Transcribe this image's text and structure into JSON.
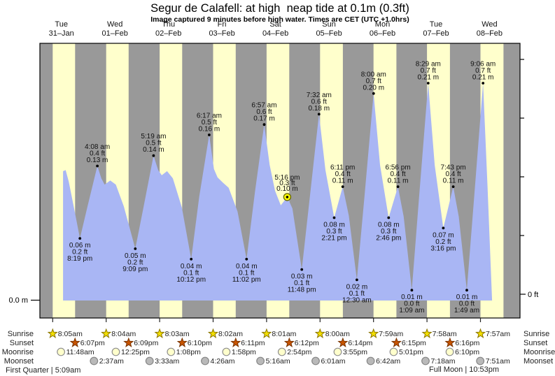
{
  "title": "Segur de Calafell: at high  neap tide at 0.1m (0.3ft)",
  "subtitle": "Image captured 9 minutes before high water. Times are CET (UTC +1.0hrs)",
  "axes": {
    "left_label": "0.0 m",
    "right_label": "0 ft"
  },
  "days": [
    {
      "weekday": "Tue",
      "date": "31–Jan"
    },
    {
      "weekday": "Wed",
      "date": "01–Feb"
    },
    {
      "weekday": "Thu",
      "date": "02–Feb"
    },
    {
      "weekday": "Fri",
      "date": "03–Feb"
    },
    {
      "weekday": "Sat",
      "date": "04–Feb"
    },
    {
      "weekday": "Sun",
      "date": "05–Feb"
    },
    {
      "weekday": "Mon",
      "date": "06–Feb"
    },
    {
      "weekday": "Tue",
      "date": "07–Feb"
    },
    {
      "weekday": "Wed",
      "date": "08–Feb"
    }
  ],
  "colors": {
    "night_band": "#999999",
    "day_band": "#ffffcc",
    "tide_fill": "#a9b6f4",
    "date_red": "#fb4444",
    "annotation": "#111111",
    "sunrise_star": "#f2de00",
    "sunrise_star_stroke": "#8a7500",
    "sunset_star": "#c75400",
    "sunset_star_stroke": "#7a3300",
    "moonrise_circle": "#ffffcc",
    "moonrise_stroke": "#8e8e8e",
    "moonset_circle": "#b9b9b9",
    "moonset_stroke": "#858585",
    "current_marker": "#ffff00",
    "current_marker_ring": "#6b6b00"
  },
  "chart_data": {
    "type": "area",
    "title": "Segur de Calafell: at high  neap tide at 0.1m (0.3ft)",
    "ylabel_left": "0.0 m",
    "ylabel_right": "0 ft",
    "ylim_m": [
      0,
      0.25
    ],
    "x_unit": "hours from 00:00 Tue 31-Jan",
    "events": [
      {
        "kind": "low",
        "t": 20.32,
        "m": 0.06,
        "lines": [
          "0.06 m",
          "0.2 ft",
          "8:19 pm"
        ]
      },
      {
        "kind": "high",
        "t": 28.13,
        "m": 0.13,
        "lines": [
          "4:08 am",
          "0.4 ft",
          "0.13 m"
        ]
      },
      {
        "kind": "low",
        "t": 45.15,
        "m": 0.05,
        "lines": [
          "0.05 m",
          "0.2 ft",
          "9:09 pm"
        ]
      },
      {
        "kind": "high",
        "t": 53.32,
        "m": 0.14,
        "lines": [
          "5:19 am",
          "0.5 ft",
          "0.14 m"
        ]
      },
      {
        "kind": "low",
        "t": 70.2,
        "m": 0.04,
        "lines": [
          "0.04 m",
          "0.1 ft",
          "10:12 pm"
        ]
      },
      {
        "kind": "high",
        "t": 78.28,
        "m": 0.16,
        "lines": [
          "6:17 am",
          "0.5 ft",
          "0.16 m"
        ]
      },
      {
        "kind": "low",
        "t": 95.03,
        "m": 0.04,
        "lines": [
          "0.04 m",
          "0.1 ft",
          "11:02 pm"
        ]
      },
      {
        "kind": "high",
        "t": 102.95,
        "m": 0.17,
        "lines": [
          "6:57 am",
          "0.6 ft",
          "0.17 m"
        ]
      },
      {
        "kind": "current",
        "t": 113.27,
        "m": 0.1,
        "lines": [
          "5:16 pm",
          "0.3 ft",
          "0.10 m"
        ]
      },
      {
        "kind": "low",
        "t": 119.8,
        "m": 0.03,
        "lines": [
          "0.03 m",
          "0.1 ft",
          "11:48 pm"
        ]
      },
      {
        "kind": "high",
        "t": 127.53,
        "m": 0.18,
        "lines": [
          "7:32 am",
          "0.6 ft",
          "0.18 m"
        ]
      },
      {
        "kind": "low",
        "t": 134.35,
        "m": 0.08,
        "lines": [
          "0.08 m",
          "0.3 ft",
          "2:21 pm"
        ]
      },
      {
        "kind": "high",
        "t": 138.18,
        "m": 0.11,
        "lines": [
          "6:11 pm",
          "0.4 ft",
          "0.11 m"
        ]
      },
      {
        "kind": "low",
        "t": 144.5,
        "m": 0.02,
        "lines": [
          "0.02 m",
          "0.1 ft",
          "12:30 am"
        ]
      },
      {
        "kind": "high",
        "t": 152.0,
        "m": 0.2,
        "lines": [
          "8:00 am",
          "0.7 ft",
          "0.20 m"
        ]
      },
      {
        "kind": "low",
        "t": 158.77,
        "m": 0.08,
        "lines": [
          "0.08 m",
          "0.3 ft",
          "2:46 pm"
        ]
      },
      {
        "kind": "high",
        "t": 162.93,
        "m": 0.11,
        "lines": [
          "6:56 pm",
          "0.4 ft",
          "0.11 m"
        ]
      },
      {
        "kind": "low",
        "t": 169.15,
        "m": 0.01,
        "lines": [
          "0.01 m",
          "0.0 ft",
          "1:09 am"
        ]
      },
      {
        "kind": "high",
        "t": 176.48,
        "m": 0.21,
        "lines": [
          "8:29 am",
          "0.7 ft",
          "0.21 m"
        ]
      },
      {
        "kind": "low",
        "t": 183.27,
        "m": 0.07,
        "lines": [
          "0.07 m",
          "0.2 ft",
          "3:16 pm"
        ]
      },
      {
        "kind": "high",
        "t": 187.72,
        "m": 0.11,
        "lines": [
          "7:43 pm",
          "0.4 ft",
          "0.11 m"
        ]
      },
      {
        "kind": "low",
        "t": 193.82,
        "m": 0.01,
        "lines": [
          "0.01 m",
          "0.0 ft",
          "1:49 am"
        ]
      },
      {
        "kind": "high",
        "t": 201.1,
        "m": 0.21,
        "lines": [
          "9:06 am",
          "0.7 ft",
          "0.21 m"
        ]
      }
    ],
    "curve_points": [
      [
        12.75,
        0.125
      ],
      [
        13.9,
        0.126
      ],
      [
        15.3,
        0.115
      ],
      [
        17.6,
        0.09
      ],
      [
        20.32,
        0.06
      ],
      [
        23.6,
        0.09
      ],
      [
        28.13,
        0.13
      ],
      [
        29.9,
        0.118
      ],
      [
        31.4,
        0.112
      ],
      [
        33.9,
        0.116
      ],
      [
        36.4,
        0.112
      ],
      [
        40.0,
        0.091
      ],
      [
        45.15,
        0.05
      ],
      [
        48.8,
        0.09
      ],
      [
        53.32,
        0.14
      ],
      [
        55.4,
        0.126
      ],
      [
        57.0,
        0.121
      ],
      [
        59.4,
        0.125
      ],
      [
        62.0,
        0.118
      ],
      [
        66.0,
        0.09
      ],
      [
        70.2,
        0.04
      ],
      [
        73.8,
        0.1
      ],
      [
        78.28,
        0.16
      ],
      [
        80.4,
        0.127
      ],
      [
        82.0,
        0.119
      ],
      [
        84.4,
        0.114
      ],
      [
        87.0,
        0.109
      ],
      [
        91.0,
        0.086
      ],
      [
        95.03,
        0.04
      ],
      [
        98.8,
        0.105
      ],
      [
        102.95,
        0.17
      ],
      [
        105.4,
        0.131
      ],
      [
        107.8,
        0.106
      ],
      [
        110.4,
        0.092
      ],
      [
        113.27,
        0.1
      ],
      [
        115.6,
        0.089
      ],
      [
        119.8,
        0.03
      ],
      [
        123.4,
        0.1
      ],
      [
        127.53,
        0.18
      ],
      [
        130.4,
        0.126
      ],
      [
        134.35,
        0.08
      ],
      [
        138.18,
        0.11
      ],
      [
        140.9,
        0.082
      ],
      [
        144.5,
        0.02
      ],
      [
        147.9,
        0.1
      ],
      [
        152.0,
        0.2
      ],
      [
        154.9,
        0.131
      ],
      [
        158.77,
        0.08
      ],
      [
        162.93,
        0.11
      ],
      [
        165.5,
        0.081
      ],
      [
        169.15,
        0.01
      ],
      [
        172.4,
        0.1
      ],
      [
        176.48,
        0.21
      ],
      [
        179.4,
        0.131
      ],
      [
        183.27,
        0.07
      ],
      [
        187.72,
        0.11
      ],
      [
        190.2,
        0.081
      ],
      [
        193.82,
        0.01
      ],
      [
        197.1,
        0.1
      ],
      [
        201.1,
        0.21
      ],
      [
        203.1,
        0.11
      ],
      [
        205.15,
        0.0
      ]
    ]
  },
  "astro": {
    "rows": [
      {
        "key": "sunrise",
        "label": "Sunrise",
        "icon": "sunrise-star",
        "entries": [
          {
            "day": 0,
            "h": 8.083,
            "time": "8:05am"
          },
          {
            "day": 1,
            "h": 8.067,
            "time": "8:04am"
          },
          {
            "day": 2,
            "h": 8.05,
            "time": "8:03am"
          },
          {
            "day": 3,
            "h": 8.033,
            "time": "8:02am"
          },
          {
            "day": 4,
            "h": 8.017,
            "time": "8:01am"
          },
          {
            "day": 5,
            "h": 8.0,
            "time": "8:00am"
          },
          {
            "day": 6,
            "h": 7.983,
            "time": "7:59am"
          },
          {
            "day": 7,
            "h": 7.967,
            "time": "7:58am"
          },
          {
            "day": 8,
            "h": 7.95,
            "time": "7:57am"
          }
        ]
      },
      {
        "key": "sunset",
        "label": "Sunset",
        "icon": "sunset-star",
        "entries": [
          {
            "day": 0,
            "h": 18.117,
            "time": "6:07pm"
          },
          {
            "day": 1,
            "h": 18.15,
            "time": "6:09pm"
          },
          {
            "day": 2,
            "h": 18.167,
            "time": "6:10pm"
          },
          {
            "day": 3,
            "h": 18.183,
            "time": "6:11pm"
          },
          {
            "day": 4,
            "h": 18.2,
            "time": "6:12pm"
          },
          {
            "day": 5,
            "h": 18.233,
            "time": "6:14pm"
          },
          {
            "day": 6,
            "h": 18.25,
            "time": "6:15pm"
          },
          {
            "day": 7,
            "h": 18.267,
            "time": "6:16pm"
          }
        ]
      },
      {
        "key": "moonrise",
        "label": "Moonrise",
        "icon": "moonrise-circle",
        "entries": [
          {
            "day": 0,
            "h": 11.8,
            "time": "11:48am"
          },
          {
            "day": 1,
            "h": 12.417,
            "time": "12:25pm"
          },
          {
            "day": 2,
            "h": 13.133,
            "time": "1:08pm"
          },
          {
            "day": 3,
            "h": 13.967,
            "time": "1:58pm"
          },
          {
            "day": 4,
            "h": 14.9,
            "time": "2:54pm"
          },
          {
            "day": 5,
            "h": 15.917,
            "time": "3:55pm"
          },
          {
            "day": 6,
            "h": 17.017,
            "time": "5:01pm"
          },
          {
            "day": 7,
            "h": 18.167,
            "time": "6:10pm"
          }
        ]
      },
      {
        "key": "moonset",
        "label": "Moonset",
        "icon": "moonset-circle",
        "entries": [
          {
            "day": 1,
            "h": 2.617,
            "time": "2:37am"
          },
          {
            "day": 2,
            "h": 3.55,
            "time": "3:33am"
          },
          {
            "day": 3,
            "h": 4.433,
            "time": "4:26am"
          },
          {
            "day": 4,
            "h": 5.267,
            "time": "5:16am"
          },
          {
            "day": 5,
            "h": 6.017,
            "time": "6:01am"
          },
          {
            "day": 6,
            "h": 6.7,
            "time": "6:42am"
          },
          {
            "day": 7,
            "h": 7.3,
            "time": "7:18am"
          },
          {
            "day": 8,
            "h": 7.85,
            "time": "7:51am"
          }
        ]
      }
    ],
    "footer_left": "First Quarter | 5:09am",
    "footer_right": "Full Moon | 10:53pm"
  }
}
